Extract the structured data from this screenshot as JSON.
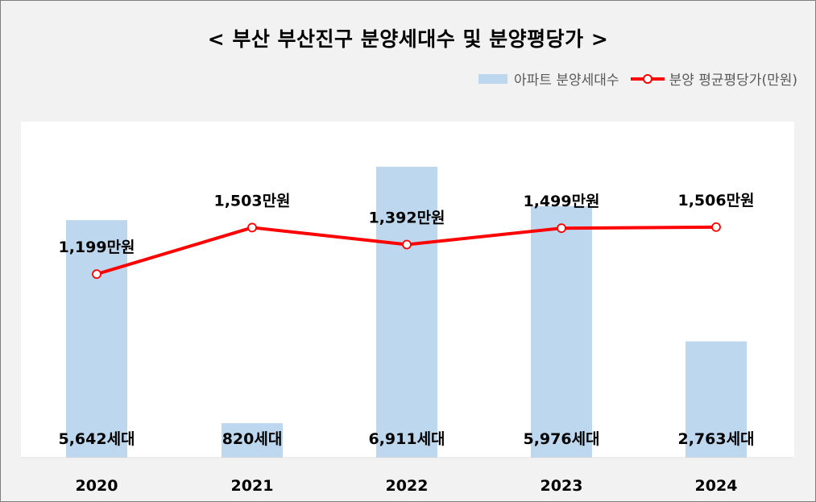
{
  "chart_data": {
    "type": "bar",
    "title": "< 부산 부산진구 분양세대수 및 분양평당가 >",
    "categories": [
      "2020",
      "2021",
      "2022",
      "2023",
      "2024"
    ],
    "series": [
      {
        "name": "아파트 분양세대수",
        "kind": "bar",
        "values": [
          5642,
          820,
          6911,
          5976,
          2763
        ],
        "labels": [
          "5,642세대",
          "820세대",
          "6,911세대",
          "5,976세대",
          "2,763세대"
        ],
        "color": "#bdd7ee"
      },
      {
        "name": "분양 평균평당가(만원)",
        "kind": "line",
        "values": [
          1199,
          1503,
          1392,
          1499,
          1506
        ],
        "labels": [
          "1,199만원",
          "1,503만원",
          "1,392만원",
          "1,499만원",
          "1,506만원"
        ],
        "color": "#ff0000"
      }
    ],
    "bar_ylim": [
      0,
      8000
    ],
    "line_ylim": [
      0,
      2200
    ],
    "grid": false,
    "legend_position": "top-right"
  }
}
